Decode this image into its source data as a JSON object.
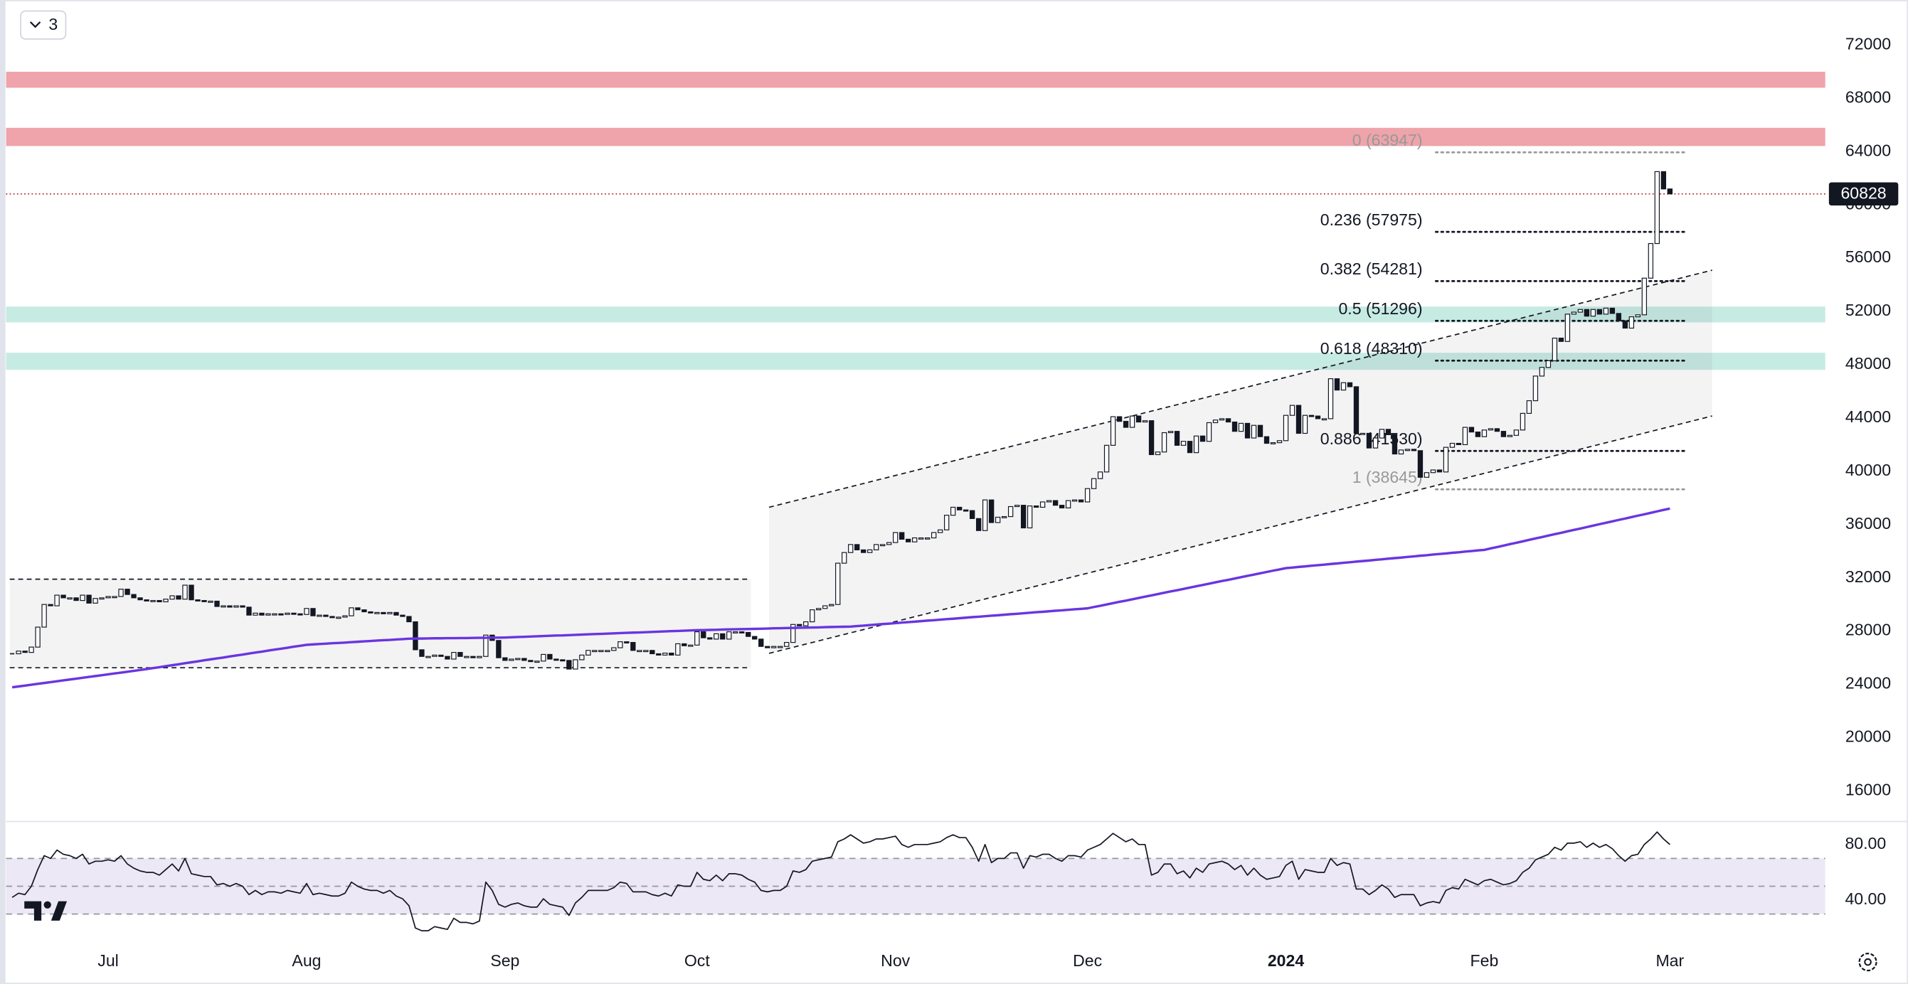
{
  "toolbar": {
    "badge": "3"
  },
  "chart_data": [
    {
      "type": "candlestick",
      "categories": [
        null,
        null,
        null,
        null,
        null,
        null,
        null,
        null,
        null,
        null,
        null,
        null,
        null,
        null,
        null,
        "Jul",
        null,
        null,
        null,
        null,
        null,
        null,
        null,
        null,
        null,
        null,
        null,
        null,
        null,
        null,
        null,
        null,
        null,
        null,
        null,
        null,
        null,
        null,
        null,
        null,
        null,
        null,
        null,
        null,
        null,
        null,
        "Aug",
        null,
        null,
        null,
        null,
        null,
        null,
        null,
        null,
        null,
        null,
        null,
        null,
        null,
        null,
        null,
        null,
        null,
        null,
        null,
        null,
        null,
        null,
        null,
        null,
        null,
        null,
        null,
        null,
        null,
        null,
        "Sep",
        null,
        null,
        null,
        null,
        null,
        null,
        null,
        null,
        null,
        null,
        null,
        null,
        null,
        null,
        null,
        null,
        null,
        null,
        null,
        null,
        null,
        null,
        null,
        null,
        null,
        null,
        null,
        null,
        null,
        "Oct",
        null,
        null,
        null,
        null,
        null,
        null,
        null,
        null,
        null,
        null,
        null,
        null,
        null,
        null,
        null,
        null,
        null,
        null,
        null,
        null,
        null,
        null,
        null,
        null,
        null,
        null,
        null,
        null,
        null,
        null,
        "Nov",
        null,
        null,
        null,
        null,
        null,
        null,
        null,
        null,
        null,
        null,
        null,
        null,
        null,
        null,
        null,
        null,
        null,
        null,
        null,
        null,
        null,
        null,
        null,
        null,
        null,
        null,
        null,
        null,
        null,
        "Dec",
        null,
        null,
        null,
        null,
        null,
        null,
        null,
        null,
        null,
        null,
        null,
        null,
        null,
        null,
        null,
        null,
        null,
        null,
        null,
        null,
        null,
        null,
        null,
        null,
        null,
        null,
        null,
        null,
        null,
        null,
        "2024",
        null,
        null,
        null,
        null,
        null,
        null,
        null,
        null,
        null,
        null,
        null,
        null,
        null,
        null,
        null,
        null,
        null,
        null,
        null,
        null,
        null,
        null,
        null,
        null,
        null,
        null,
        null,
        null,
        null,
        null,
        "Feb",
        null,
        null,
        null,
        null,
        null,
        null,
        null,
        null,
        null,
        null,
        null,
        null,
        null,
        null,
        null,
        null,
        null,
        null,
        null,
        null,
        null,
        null,
        null,
        null,
        null,
        null,
        null,
        null,
        "Mar"
      ],
      "series": [
        {
          "type": "candlestick",
          "color": "#131722",
          "up_color": "#ffffff",
          "values": [
            26300,
            26500,
            26400,
            26800,
            28300,
            30000,
            29900,
            30700,
            30500,
            30500,
            30300,
            30700,
            30100,
            30450,
            30500,
            30600,
            30600,
            31150,
            30750,
            30500,
            30350,
            30300,
            30300,
            30200,
            30400,
            30650,
            30400,
            31450,
            30350,
            30300,
            30250,
            30250,
            29850,
            29900,
            29800,
            29900,
            29800,
            29200,
            29350,
            29200,
            29300,
            29300,
            29250,
            29350,
            29300,
            29250,
            29700,
            29150,
            29200,
            29100,
            29050,
            29050,
            29150,
            29750,
            29600,
            29450,
            29400,
            29400,
            29300,
            29400,
            29200,
            29100,
            28700,
            26600,
            26100,
            26100,
            26200,
            26100,
            25900,
            26400,
            26100,
            26100,
            26000,
            26100,
            27700,
            27300,
            26000,
            25800,
            25900,
            25950,
            25800,
            25750,
            25750,
            26250,
            25900,
            25850,
            25800,
            25150,
            25850,
            26200,
            26550,
            26550,
            26550,
            26550,
            26750,
            27200,
            27150,
            26550,
            26550,
            26550,
            26300,
            26200,
            26350,
            26200,
            27050,
            26900,
            26950,
            27950,
            27500,
            27400,
            27800,
            27400,
            27950,
            27950,
            27900,
            27600,
            27400,
            26850,
            26750,
            26850,
            26850,
            27150,
            28500,
            28400,
            28700,
            29600,
            29700,
            29900,
            30000,
            33100,
            33900,
            34500,
            34100,
            33900,
            34100,
            34500,
            34500,
            34650,
            35400,
            34900,
            34700,
            35000,
            35000,
            35000,
            35400,
            35600,
            36700,
            37300,
            37100,
            37050,
            36450,
            35550,
            37850,
            36150,
            36550,
            36600,
            37350,
            37450,
            35750,
            37400,
            37300,
            37700,
            37800,
            37450,
            37250,
            37800,
            37850,
            37700,
            38700,
            39450,
            39950,
            41950,
            44100,
            43750,
            43300,
            44150,
            43700,
            43800,
            41250,
            41450,
            42900,
            43000,
            41950,
            42250,
            41400,
            42650,
            42250,
            43650,
            43850,
            43950,
            43700,
            43000,
            43600,
            42500,
            43450,
            42600,
            42100,
            42150,
            42300,
            44200,
            44950,
            42850,
            44200,
            44150,
            43950,
            43950,
            46950,
            46100,
            46650,
            46350,
            42850,
            42850,
            41750,
            42500,
            43150,
            42750,
            41300,
            41600,
            41650,
            41550,
            39550,
            39900,
            40100,
            39950,
            41800,
            42100,
            42000,
            43300,
            42950,
            42600,
            43100,
            43200,
            43000,
            42600,
            42700,
            43100,
            44350,
            45300,
            47150,
            47800,
            48300,
            50000,
            49750,
            51800,
            51950,
            52150,
            51650,
            52150,
            51800,
            52250,
            51850,
            51300,
            50750,
            51600,
            51750,
            54500,
            57100,
            62500,
            61200,
            60828
          ]
        },
        {
          "type": "line",
          "color": "#6a35e0",
          "values": [
            23780,
            23845,
            23910,
            23975,
            24040,
            24105,
            24170,
            24235,
            24300,
            24365,
            24430,
            24495,
            24560,
            24625,
            24690,
            24755,
            24820,
            24885,
            24950,
            25015,
            25080,
            25150,
            25220,
            25290,
            25370,
            25440,
            25510,
            25590,
            25660,
            25730,
            25810,
            25880,
            25950,
            26020,
            26100,
            26170,
            26240,
            26320,
            26390,
            26460,
            26540,
            26610,
            26680,
            26750,
            26830,
            26900,
            26970,
            27000,
            27030,
            27060,
            27090,
            27110,
            27140,
            27170,
            27200,
            27230,
            27260,
            27290,
            27320,
            27340,
            27370,
            27400,
            27430,
            27440,
            27440,
            27450,
            27460,
            27460,
            27470,
            27470,
            27480,
            27480,
            27490,
            27500,
            27500,
            27510,
            27510,
            27520,
            27540,
            27560,
            27570,
            27590,
            27610,
            27630,
            27650,
            27670,
            27680,
            27700,
            27720,
            27740,
            27760,
            27780,
            27790,
            27810,
            27830,
            27850,
            27870,
            27890,
            27900,
            27920,
            27940,
            27960,
            27980,
            28000,
            28010,
            28030,
            28050,
            28070,
            28080,
            28090,
            28100,
            28120,
            28130,
            28140,
            28150,
            28160,
            28170,
            28180,
            28190,
            28210,
            28220,
            28230,
            28240,
            28250,
            28260,
            28270,
            28280,
            28300,
            28310,
            28320,
            28330,
            28340,
            28380,
            28410,
            28450,
            28490,
            28530,
            28560,
            28600,
            28640,
            28670,
            28710,
            28750,
            28790,
            28820,
            28860,
            28900,
            28930,
            28970,
            29010,
            29050,
            29080,
            29120,
            29160,
            29190,
            29230,
            29270,
            29300,
            29340,
            29380,
            29420,
            29450,
            29490,
            29530,
            29560,
            29600,
            29640,
            29670,
            29710,
            29810,
            29900,
            30000,
            30100,
            30200,
            30290,
            30390,
            30490,
            30590,
            30680,
            30780,
            30880,
            30980,
            31070,
            31170,
            31270,
            31370,
            31460,
            31560,
            31660,
            31760,
            31850,
            31950,
            32050,
            32150,
            32240,
            32340,
            32440,
            32540,
            32630,
            32730,
            32770,
            32820,
            32860,
            32910,
            32950,
            32990,
            33040,
            33080,
            33130,
            33170,
            33220,
            33260,
            33300,
            33350,
            33390,
            33440,
            33480,
            33520,
            33570,
            33610,
            33660,
            33700,
            33750,
            33790,
            33830,
            33880,
            33920,
            33970,
            34010,
            34060,
            34100,
            34210,
            34310,
            34420,
            34530,
            34630,
            34740,
            34850,
            34960,
            35060,
            35170,
            35280,
            35380,
            35490,
            35600,
            35700,
            35810,
            35920,
            36030,
            36130,
            36240,
            36350,
            36450,
            36560,
            36670,
            36770,
            36880,
            36990,
            37100,
            37200
          ]
        }
      ],
      "ylim": [
        13700,
        75380
      ],
      "yticks": [
        16000,
        20000,
        24000,
        28000,
        32000,
        36000,
        40000,
        44000,
        48000,
        52000,
        56000,
        60000,
        64000,
        68000,
        72000
      ],
      "grid": false,
      "zones": [
        {
          "from": 68800,
          "to": 70000,
          "color": "#eea4aa"
        },
        {
          "from": 64420,
          "to": 65790,
          "color": "#eea4aa"
        },
        {
          "from": 51180,
          "to": 52370,
          "color": "#c6ebe3"
        },
        {
          "from": 47620,
          "to": 48900,
          "color": "#c6ebe3"
        }
      ],
      "range_box": {
        "top": 31900,
        "bottom": 25250
      },
      "channel": {
        "upper": [
          37300,
          55100
        ],
        "lower": [
          26330,
          44150
        ]
      },
      "fib": [
        {
          "label": "0 (63947)",
          "value": 63947,
          "color": "#999999"
        },
        {
          "label": "0.236 (57975)",
          "value": 57975,
          "color": "#131722"
        },
        {
          "label": "0.382 (54281)",
          "value": 54281,
          "color": "#131722"
        },
        {
          "label": "0.5 (51296)",
          "value": 51296,
          "color": "#131722"
        },
        {
          "label": "0.618 (48310)",
          "value": 48310,
          "color": "#131722"
        },
        {
          "label": "0.886 (41530)",
          "value": 41530,
          "color": "#131722"
        },
        {
          "label": "1 (38645)",
          "value": 38645,
          "color": "#999999"
        }
      ],
      "last_price": {
        "value": 60828,
        "color": "#b2202c"
      }
    },
    {
      "type": "line",
      "color": "#131722",
      "values": [
        42,
        45,
        44,
        50,
        62,
        72,
        70,
        76,
        73,
        72,
        70,
        73,
        66,
        68,
        68,
        69,
        68,
        72,
        66,
        63,
        61,
        60,
        60,
        58,
        62,
        66,
        61,
        70,
        59,
        58,
        57,
        57,
        51,
        52,
        50,
        52,
        50,
        44,
        47,
        44,
        46,
        46,
        45,
        47,
        46,
        45,
        52,
        44,
        45,
        44,
        43,
        43,
        45,
        53,
        50,
        48,
        47,
        47,
        45,
        47,
        43,
        41,
        36,
        20,
        18,
        18,
        21,
        20,
        19,
        27,
        24,
        24,
        23,
        25,
        53,
        47,
        37,
        35,
        37,
        38,
        36,
        35,
        35,
        41,
        37,
        36,
        35,
        29,
        38,
        42,
        47,
        47,
        47,
        47,
        49,
        53,
        52,
        46,
        46,
        46,
        44,
        43,
        45,
        43,
        51,
        50,
        50,
        60,
        55,
        54,
        58,
        54,
        59,
        59,
        58,
        55,
        53,
        47,
        46,
        47,
        47,
        50,
        61,
        60,
        62,
        68,
        69,
        70,
        71,
        82,
        84,
        87,
        84,
        81,
        82,
        84,
        84,
        85,
        86,
        80,
        78,
        80,
        80,
        80,
        81,
        82,
        85,
        87,
        85,
        85,
        78,
        68,
        80,
        67,
        70,
        70,
        74,
        74,
        63,
        72,
        71,
        73,
        73,
        70,
        68,
        72,
        72,
        71,
        76,
        78,
        80,
        84,
        88,
        85,
        82,
        84,
        80,
        80,
        58,
        60,
        66,
        66,
        59,
        61,
        56,
        63,
        60,
        66,
        67,
        68,
        66,
        62,
        65,
        58,
        63,
        58,
        55,
        56,
        57,
        65,
        68,
        55,
        62,
        61,
        60,
        60,
        70,
        65,
        67,
        66,
        48,
        48,
        44,
        47,
        51,
        48,
        42,
        44,
        44,
        44,
        36,
        38,
        39,
        38,
        47,
        49,
        48,
        55,
        53,
        51,
        54,
        55,
        53,
        51,
        52,
        54,
        60,
        63,
        69,
        71,
        73,
        78,
        76,
        81,
        81,
        82,
        78,
        81,
        78,
        80,
        77,
        72,
        68,
        72,
        73,
        80,
        84,
        89,
        84,
        80
      ],
      "ylim": [
        13.9,
        96.5
      ],
      "yticks": [
        {
          "value": 80,
          "label": "80.00"
        },
        {
          "value": 40,
          "label": "40.00"
        }
      ],
      "levels": [
        70,
        50,
        30
      ],
      "band_color": "#ece8f5"
    }
  ]
}
